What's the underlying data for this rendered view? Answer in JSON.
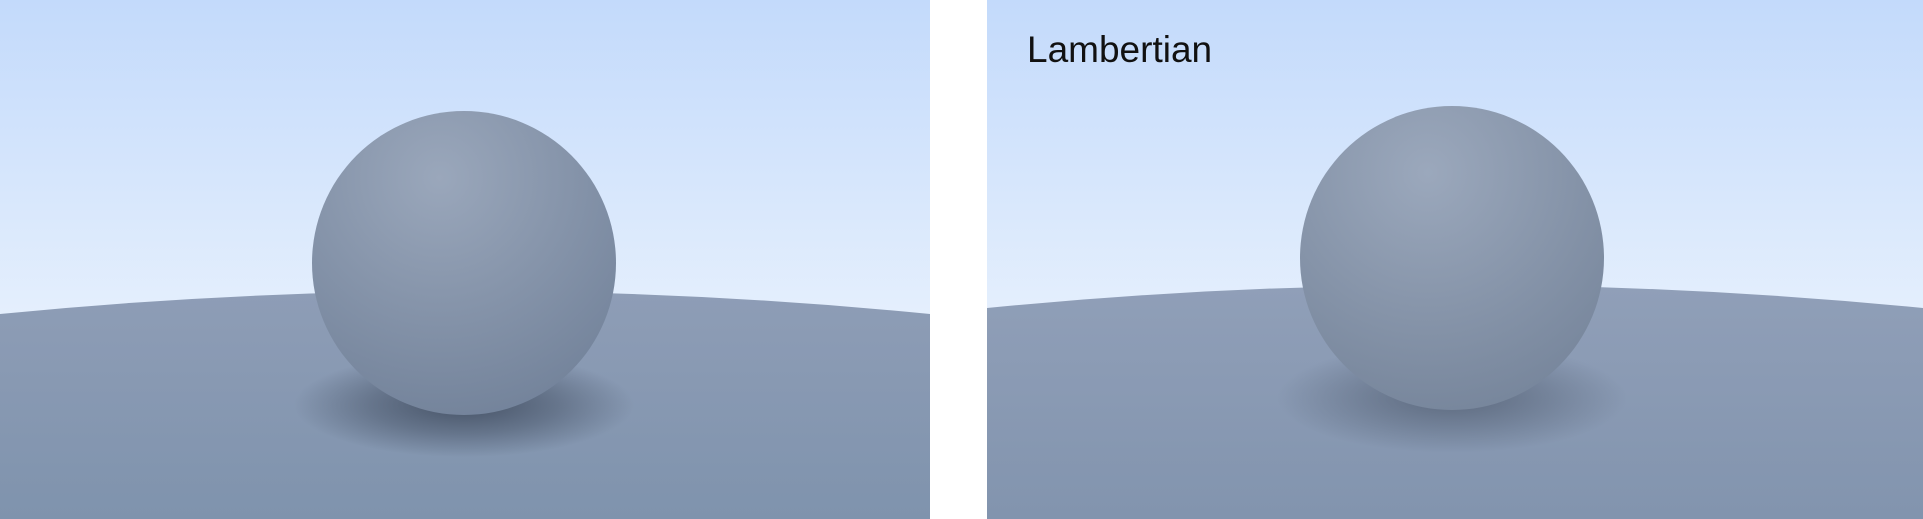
{
  "scenes": [
    {
      "caption": "",
      "sky_top": "#c3dafb",
      "sky_bottom": "#e6f0fd",
      "ground_near": "#7f93ad",
      "ground_far": "#8e9db6",
      "sphere_light": "#9aa7bb",
      "sphere_dark": "#6f7f97",
      "shadow": "#3f4b5e"
    },
    {
      "caption": "Lambertian",
      "sky_top": "#c3dafb",
      "sky_bottom": "#e6f0fd",
      "ground_near": "#8294ae",
      "ground_far": "#909fb8",
      "sphere_light": "#9ba8bc",
      "sphere_dark": "#738298",
      "shadow": "#4d596c"
    }
  ]
}
